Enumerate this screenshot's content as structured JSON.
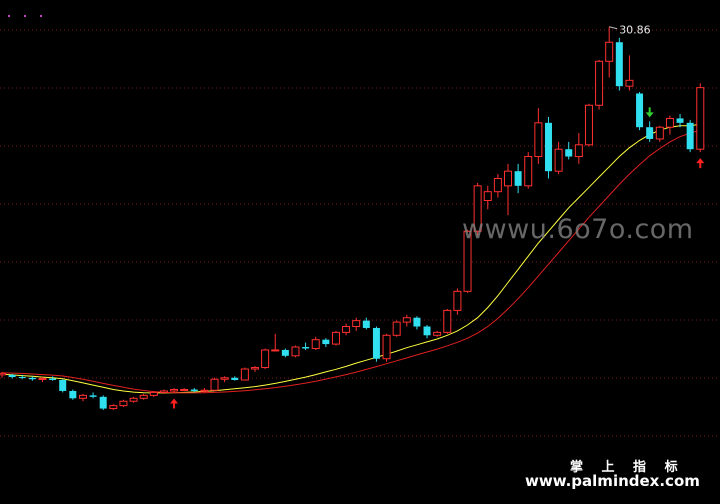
{
  "watermark": "wwwu.6o7o.com",
  "footer": {
    "brand": "掌 上 指 标",
    "site": "www.palmindex.com"
  },
  "chart_data": {
    "type": "candlestick",
    "ylim": [
      3.2,
      32.0
    ],
    "peak_label": "30.86",
    "candles": [
      [
        7.1,
        7.3,
        6.9,
        7.2
      ],
      [
        7.1,
        7.15,
        6.85,
        6.95
      ],
      [
        6.95,
        7.1,
        6.8,
        6.9
      ],
      [
        6.9,
        7.0,
        6.7,
        6.8
      ],
      [
        6.8,
        6.95,
        6.6,
        6.85
      ],
      [
        6.85,
        7.0,
        6.7,
        6.75
      ],
      [
        6.75,
        6.8,
        5.9,
        6.0
      ],
      [
        6.0,
        6.1,
        5.4,
        5.5
      ],
      [
        5.5,
        5.8,
        5.3,
        5.7
      ],
      [
        5.7,
        5.9,
        5.5,
        5.6
      ],
      [
        5.6,
        5.7,
        4.7,
        4.8
      ],
      [
        4.8,
        5.1,
        4.7,
        5.0
      ],
      [
        5.0,
        5.4,
        4.9,
        5.3
      ],
      [
        5.3,
        5.6,
        5.2,
        5.5
      ],
      [
        5.5,
        5.8,
        5.4,
        5.7
      ],
      [
        5.7,
        6.0,
        5.6,
        5.9
      ],
      [
        5.9,
        6.1,
        5.8,
        6.0
      ],
      [
        6.0,
        6.2,
        5.9,
        6.1
      ],
      [
        6.1,
        6.2,
        6.0,
        6.1
      ],
      [
        6.1,
        6.2,
        5.9,
        6.0
      ],
      [
        6.0,
        6.2,
        5.9,
        6.05
      ],
      [
        6.05,
        6.9,
        6.0,
        6.8
      ],
      [
        6.8,
        7.0,
        6.6,
        6.9
      ],
      [
        6.9,
        7.0,
        6.7,
        6.75
      ],
      [
        6.75,
        7.6,
        6.7,
        7.5
      ],
      [
        7.5,
        7.7,
        7.3,
        7.6
      ],
      [
        7.6,
        8.9,
        7.5,
        8.8
      ],
      [
        8.8,
        9.9,
        8.7,
        8.8
      ],
      [
        8.8,
        8.9,
        8.3,
        8.4
      ],
      [
        8.4,
        9.1,
        8.3,
        9.0
      ],
      [
        9.0,
        9.3,
        8.8,
        8.9
      ],
      [
        8.9,
        9.7,
        8.8,
        9.5
      ],
      [
        9.5,
        9.6,
        9.0,
        9.2
      ],
      [
        9.2,
        10.1,
        9.1,
        10.0
      ],
      [
        10.0,
        10.6,
        9.8,
        10.4
      ],
      [
        10.4,
        11.0,
        10.1,
        10.8
      ],
      [
        10.8,
        11.0,
        10.2,
        10.3
      ],
      [
        10.3,
        10.4,
        8.0,
        8.2
      ],
      [
        8.2,
        9.9,
        8.0,
        9.8
      ],
      [
        9.8,
        10.8,
        9.7,
        10.7
      ],
      [
        10.7,
        11.2,
        10.4,
        11.0
      ],
      [
        11.0,
        11.1,
        10.2,
        10.4
      ],
      [
        10.4,
        10.5,
        9.6,
        9.8
      ],
      [
        9.8,
        10.1,
        9.7,
        10.0
      ],
      [
        10.0,
        11.6,
        9.9,
        11.5
      ],
      [
        11.5,
        13.0,
        11.2,
        12.8
      ],
      [
        12.8,
        17.0,
        12.7,
        16.9
      ],
      [
        16.9,
        20.2,
        16.6,
        20.0
      ],
      [
        19.0,
        20.0,
        18.4,
        19.6
      ],
      [
        19.6,
        20.8,
        19.2,
        20.5
      ],
      [
        20.0,
        21.5,
        18.0,
        21.0
      ],
      [
        21.0,
        21.5,
        19.5,
        20.0
      ],
      [
        20.0,
        22.3,
        19.8,
        22.0
      ],
      [
        22.0,
        25.3,
        21.5,
        24.3
      ],
      [
        24.3,
        24.7,
        20.5,
        21.0
      ],
      [
        21.0,
        23.0,
        20.8,
        22.5
      ],
      [
        22.5,
        23.0,
        21.8,
        22.0
      ],
      [
        22.0,
        23.6,
        21.5,
        22.8
      ],
      [
        22.8,
        25.6,
        22.7,
        25.5
      ],
      [
        25.5,
        28.6,
        25.2,
        28.5
      ],
      [
        28.5,
        30.86,
        27.4,
        29.8
      ],
      [
        29.8,
        30.1,
        26.5,
        26.8
      ],
      [
        26.8,
        28.9,
        26.5,
        27.2
      ],
      [
        26.3,
        26.4,
        23.8,
        24.0
      ],
      [
        24.0,
        24.4,
        23.0,
        23.2
      ],
      [
        23.2,
        24.1,
        23.0,
        24.0
      ],
      [
        24.0,
        24.8,
        23.5,
        24.6
      ],
      [
        24.6,
        24.9,
        24.0,
        24.3
      ],
      [
        24.3,
        24.5,
        22.3,
        22.5
      ],
      [
        22.5,
        27.0,
        22.3,
        26.7
      ]
    ],
    "series": [
      {
        "color": "#ffff40",
        "values": [
          7.15,
          7.1,
          7.05,
          7.0,
          6.95,
          6.9,
          6.83,
          6.7,
          6.55,
          6.4,
          6.25,
          6.1,
          6.0,
          5.92,
          5.88,
          5.87,
          5.87,
          5.88,
          5.9,
          5.93,
          5.97,
          6.02,
          6.08,
          6.15,
          6.22,
          6.3,
          6.4,
          6.52,
          6.65,
          6.8,
          6.95,
          7.12,
          7.3,
          7.48,
          7.68,
          7.9,
          8.1,
          8.3,
          8.5,
          8.72,
          8.95,
          9.15,
          9.35,
          9.55,
          9.8,
          10.1,
          10.5,
          11.0,
          11.7,
          12.5,
          13.4,
          14.3,
          15.2,
          16.1,
          16.9,
          17.7,
          18.5,
          19.2,
          19.9,
          20.6,
          21.3,
          22.0,
          22.6,
          23.1,
          23.5,
          23.8,
          24.0,
          24.1,
          24.1,
          24.2
        ]
      },
      {
        "color": "#e02020",
        "values": [
          7.25,
          7.22,
          7.2,
          7.16,
          7.12,
          7.08,
          7.02,
          6.92,
          6.8,
          6.66,
          6.52,
          6.38,
          6.25,
          6.13,
          6.03,
          5.96,
          5.91,
          5.88,
          5.87,
          5.87,
          5.88,
          5.9,
          5.93,
          5.97,
          6.02,
          6.08,
          6.15,
          6.23,
          6.32,
          6.42,
          6.54,
          6.67,
          6.81,
          6.96,
          7.12,
          7.29,
          7.47,
          7.66,
          7.86,
          8.06,
          8.26,
          8.46,
          8.66,
          8.86,
          9.08,
          9.32,
          9.6,
          9.95,
          10.4,
          10.95,
          11.6,
          12.3,
          13.05,
          13.85,
          14.65,
          15.45,
          16.25,
          17.05,
          17.85,
          18.6,
          19.35,
          20.1,
          20.8,
          21.45,
          22.05,
          22.55,
          23.0,
          23.35,
          23.6,
          23.8
        ]
      }
    ],
    "signals": [
      {
        "index": 17,
        "type": "buy"
      },
      {
        "index": 69,
        "type": "buy"
      },
      {
        "index": 64,
        "type": "sell"
      }
    ]
  }
}
